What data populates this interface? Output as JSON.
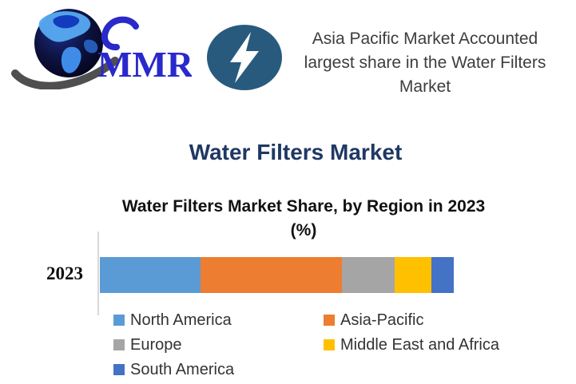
{
  "header": {
    "logo": {
      "text": "MMR"
    },
    "highlight": {
      "lines": [
        "Asia Pacific Market Accounted",
        "largest share in the Water Filters",
        "Market"
      ]
    }
  },
  "page_title": "Water Filters Market",
  "chart": {
    "title_line1": "Water Filters Market Share, by Region in 2023",
    "title_line2": "(%)",
    "category_label": "2023"
  },
  "chart_data": {
    "type": "bar",
    "orientation": "horizontal-stacked",
    "title": "Water Filters Market Share, by Region in 2023 (%)",
    "categories": [
      "2023"
    ],
    "series": [
      {
        "name": "North America",
        "values": [
          28.5
        ],
        "color": "#5B9BD5"
      },
      {
        "name": "Asia-Pacific",
        "values": [
          39.8
        ],
        "color": "#ED7D31"
      },
      {
        "name": "Europe",
        "values": [
          14.9
        ],
        "color": "#A5A5A5"
      },
      {
        "name": "Middle East and Africa",
        "values": [
          10.4
        ],
        "color": "#FFC000"
      },
      {
        "name": "South America",
        "values": [
          6.4
        ],
        "color": "#4472C4"
      }
    ],
    "xlim": [
      0,
      100
    ],
    "grid": false,
    "legend_position": "bottom"
  },
  "legend": {
    "items": [
      {
        "label": "North America",
        "color": "#5B9BD5"
      },
      {
        "label": "Asia-Pacific",
        "color": "#ED7D31"
      },
      {
        "label": "Europe",
        "color": "#A5A5A5"
      },
      {
        "label": "Middle East and Africa",
        "color": "#FFC000"
      },
      {
        "label": "South America",
        "color": "#4472C4"
      }
    ]
  },
  "colors": {
    "title_navy": "#1F3864",
    "header_text": "#3D3D3D",
    "logo_blue": "#2929CC",
    "badge_blue": "#285A7E",
    "axis_gray": "#D9D9D9"
  }
}
